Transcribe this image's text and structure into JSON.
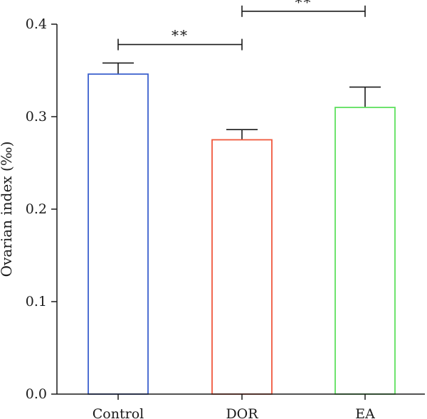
{
  "chart_data": {
    "type": "bar",
    "title": "",
    "xlabel": "",
    "ylabel": "Ovarian index (‰)",
    "ylim": [
      0,
      0.4
    ],
    "yticks": [
      "0.0",
      "0.1",
      "0.2",
      "0.3",
      "0.4"
    ],
    "categories": [
      "Control",
      "DOR",
      "EA"
    ],
    "values": [
      0.346,
      0.275,
      0.31
    ],
    "errors": [
      0.012,
      0.011,
      0.022
    ],
    "bar_colors": [
      "#3a5fcd",
      "#f0583c",
      "#5ee05e"
    ],
    "bar_fill": "#ffffff",
    "grid": false,
    "legend": "none",
    "significance": [
      {
        "from": "Control",
        "to": "DOR",
        "y": 0.378,
        "label": "**"
      },
      {
        "from": "DOR",
        "to": "EA",
        "y": 0.414,
        "label": "**"
      }
    ]
  }
}
